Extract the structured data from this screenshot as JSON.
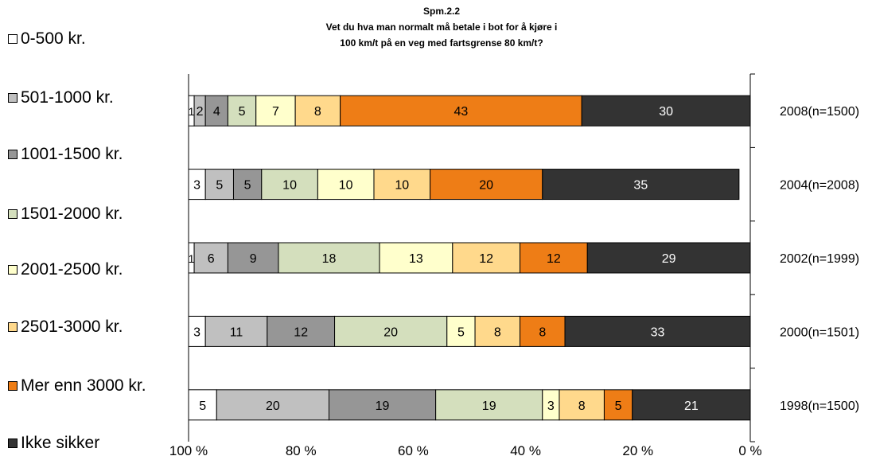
{
  "title_lines": [
    "Spm.2.2",
    "Vet du hva man normalt må betale i bot for å kjøre i",
    "100 km/t på en veg med fartsgrense 80 km/t?"
  ],
  "colors": {
    "0-500 kr.": "#ffffff",
    "501-1000 kr.": "#c0c0c0",
    "1001-1500 kr.": "#969696",
    "1501-2000 kr.": "#d4dfbd",
    "2001-2500 kr.": "#ffffcc",
    "2501-3000 kr.": "#ffd98c",
    "Mer enn 3000 kr.": "#ee7d16",
    "Ikke sikker": "#333333"
  },
  "chart_data": {
    "type": "bar",
    "orientation": "horizontal",
    "stacked": "percent",
    "title": "Spm.2.2 Vet du hva man normalt må betale i bot for å kjøre i 100 km/t på en veg med fartsgrense 80 km/t?",
    "x_axis": "reversed",
    "xlim": [
      0,
      100
    ],
    "x_ticks": [
      "100 %",
      "80 %",
      "60 %",
      "40 %",
      "20 %",
      "0 %"
    ],
    "legend_position": "left",
    "categories": [
      "2008(n=1500)",
      "2004(n=2008)",
      "2002(n=1999)",
      "2000(n=1501)",
      "1998(n=1500)"
    ],
    "series": [
      {
        "name": "0-500 kr.",
        "values": [
          1,
          3,
          1,
          3,
          5
        ]
      },
      {
        "name": "501-1000 kr.",
        "values": [
          2,
          5,
          6,
          11,
          20
        ]
      },
      {
        "name": "1001-1500 kr.",
        "values": [
          4,
          5,
          9,
          12,
          19
        ]
      },
      {
        "name": "1501-2000 kr.",
        "values": [
          5,
          10,
          18,
          20,
          19
        ]
      },
      {
        "name": "2001-2500 kr.",
        "values": [
          7,
          10,
          13,
          5,
          3
        ]
      },
      {
        "name": "2501-3000 kr.",
        "values": [
          8,
          10,
          12,
          8,
          8
        ]
      },
      {
        "name": "Mer enn 3000 kr.",
        "values": [
          43,
          20,
          12,
          8,
          5
        ]
      },
      {
        "name": "Ikke sikker",
        "values": [
          30,
          35,
          29,
          33,
          21
        ]
      }
    ]
  }
}
